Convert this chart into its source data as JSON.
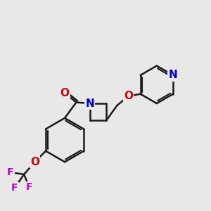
{
  "background_color": "#e8e8e8",
  "bond_color": "#1a1a1a",
  "bond_width": 1.8,
  "atom_colors": {
    "N": "#0000cc",
    "O": "#cc0000",
    "F": "#cc00cc",
    "C": "#1a1a1a"
  },
  "font_size_atom": 11,
  "figsize": [
    3.0,
    3.0
  ],
  "dpi": 100
}
